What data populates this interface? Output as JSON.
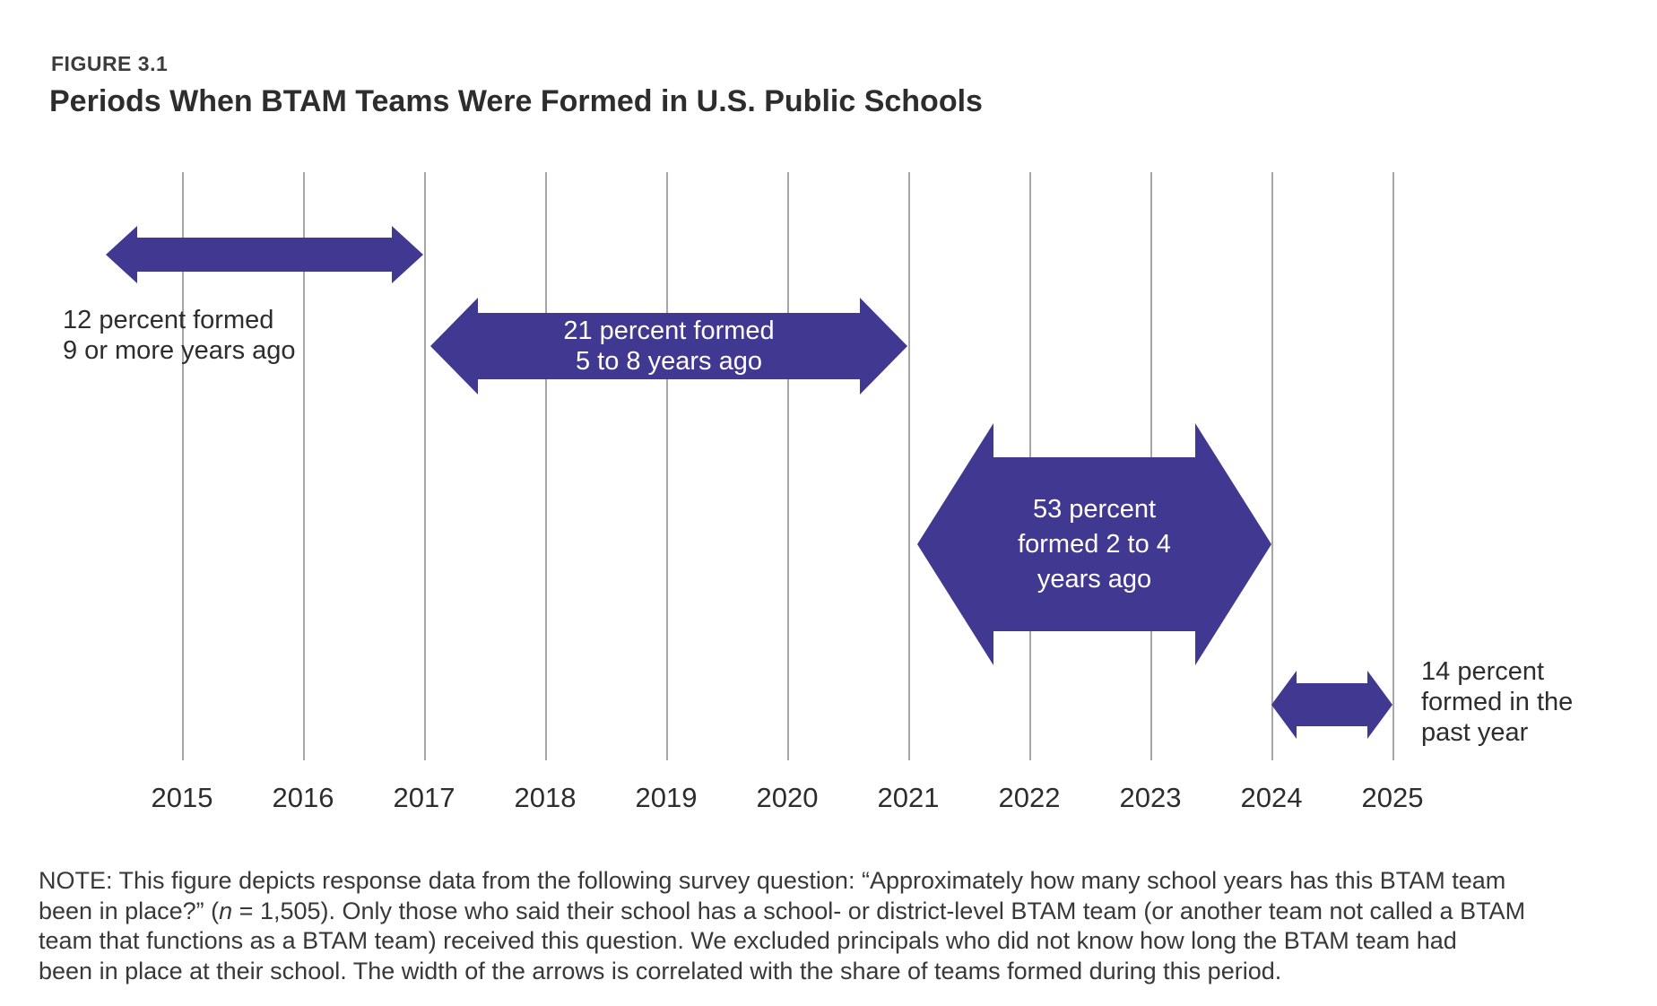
{
  "figure": {
    "label": "FIGURE 3.1",
    "title": "Periods When BTAM Teams Were Formed in U.S. Public Schools"
  },
  "colors": {
    "arrow": "#413892",
    "gridline": "#a6a6a6",
    "label_on_arrow": "#ffffff",
    "text_dark": "#2d2d2d"
  },
  "chart": {
    "years": [
      "2015",
      "2016",
      "2017",
      "2018",
      "2019",
      "2020",
      "2021",
      "2022",
      "2023",
      "2024",
      "2025"
    ],
    "arrows": [
      {
        "percent": 12,
        "label_lines": [
          "12 percent formed",
          "9 or more years ago"
        ],
        "label_placement": "below-left",
        "span_years": [
          2014.4,
          2017
        ]
      },
      {
        "percent": 21,
        "label_lines": [
          "21 percent formed",
          "5 to 8 years ago"
        ],
        "label_placement": "inside",
        "span_years": [
          2017,
          2021
        ]
      },
      {
        "percent": 53,
        "label_lines": [
          "53 percent",
          "formed 2 to 4",
          "years ago"
        ],
        "label_placement": "inside",
        "span_years": [
          2021,
          2024
        ]
      },
      {
        "percent": 14,
        "label_lines": [
          "14 percent",
          "formed in the",
          "past year"
        ],
        "label_placement": "right",
        "span_years": [
          2024,
          2025
        ]
      }
    ]
  },
  "chart_data": {
    "type": "bar",
    "variant": "double-arrow-timeline",
    "figure_label": "FIGURE 3.1",
    "title": "Periods When BTAM Teams Were Formed in U.S. Public Schools",
    "x_axis": {
      "tick_labels": [
        2015,
        2016,
        2017,
        2018,
        2019,
        2020,
        2021,
        2022,
        2023,
        2024,
        2025
      ],
      "range": [
        2014.3,
        2025.6
      ],
      "gridlines": true
    },
    "series": [
      {
        "label": "12 percent formed 9 or more years ago",
        "percent": 12,
        "start_year": 2014.4,
        "end_year": 2017
      },
      {
        "label": "21 percent formed 5 to 8 years ago",
        "percent": 21,
        "start_year": 2017,
        "end_year": 2021
      },
      {
        "label": "53 percent formed 2 to 4 years ago",
        "percent": 53,
        "start_year": 2021,
        "end_year": 2024
      },
      {
        "label": "14 percent formed in the past year",
        "percent": 14,
        "start_year": 2024,
        "end_year": 2025
      }
    ],
    "encoding_note": "arrow thickness is correlated with the share of teams formed during the period",
    "legend": "none"
  },
  "note": {
    "line1": "NOTE: This figure depicts response data from the following survey question: “Approximately how many school years has this BTAM team",
    "line2_pre": "been in place?” (",
    "line2_italic": "n",
    "line2_post": " = 1,505). Only those who said their school has a school- or district-level BTAM team (or another team not called a BTAM",
    "line3": "team that functions as a BTAM team) received this question. We excluded principals who did not know how long the BTAM team had",
    "line4": "been in place at their school. The width of the arrows is correlated with the share of teams formed during this period."
  }
}
